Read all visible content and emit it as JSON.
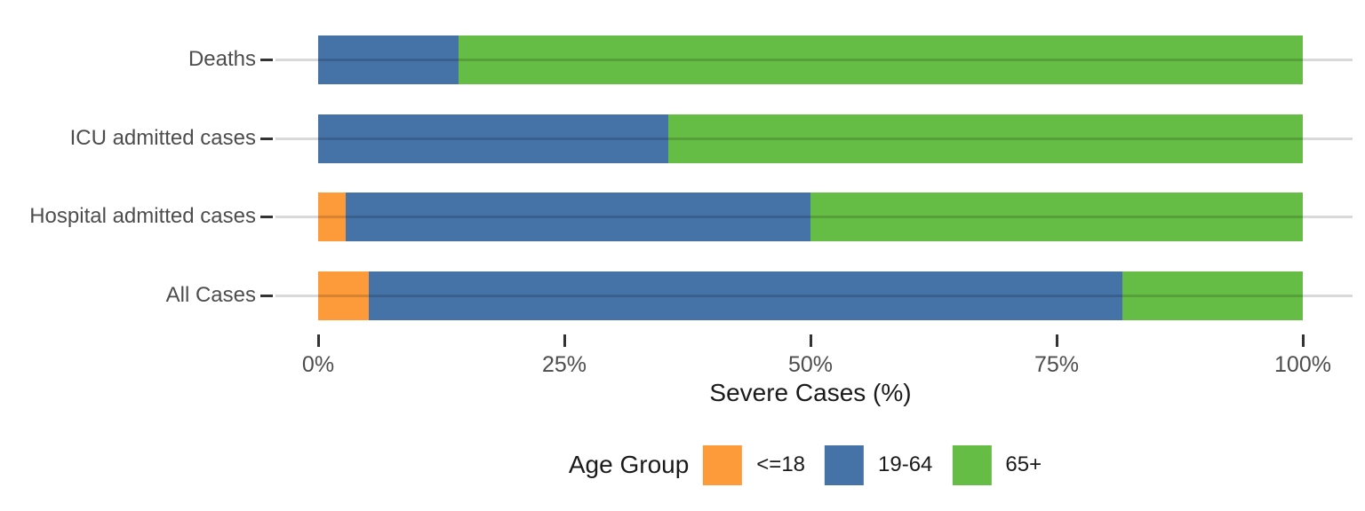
{
  "chart_data": {
    "type": "bar",
    "orientation": "horizontal",
    "stacked": true,
    "title": "",
    "categories": [
      "Deaths",
      "ICU admitted cases",
      "Hospital admitted cases",
      "All Cases"
    ],
    "series": [
      {
        "name": "<=18",
        "color": "#FD9A3A",
        "values": [
          0,
          0,
          2.8,
          5.1
        ]
      },
      {
        "name": "19-64",
        "color": "#4573A7",
        "values": [
          14.3,
          35.6,
          47.2,
          76.6
        ]
      },
      {
        "name": "65+",
        "color": "#66BD45",
        "values": [
          85.7,
          64.4,
          50.0,
          18.3
        ]
      }
    ],
    "xlabel": "Severe Cases (%)",
    "xlim": [
      0,
      100
    ],
    "x_tick_values": [
      0,
      25,
      50,
      75,
      100
    ],
    "x_tick_labels": [
      "0%",
      "25%",
      "50%",
      "75%",
      "100%"
    ],
    "grid": "horizontal-only",
    "legend": {
      "title": "Age Group",
      "position": "bottom",
      "entries": [
        "<=18",
        "19-64",
        "65+"
      ]
    }
  },
  "colors": {
    "axis_text": "#4D4D4D",
    "axis_title": "#1A1A1A",
    "tick": "#333333",
    "gridline_over_white": "#D9D9D9",
    "background": "#FFFFFF"
  }
}
